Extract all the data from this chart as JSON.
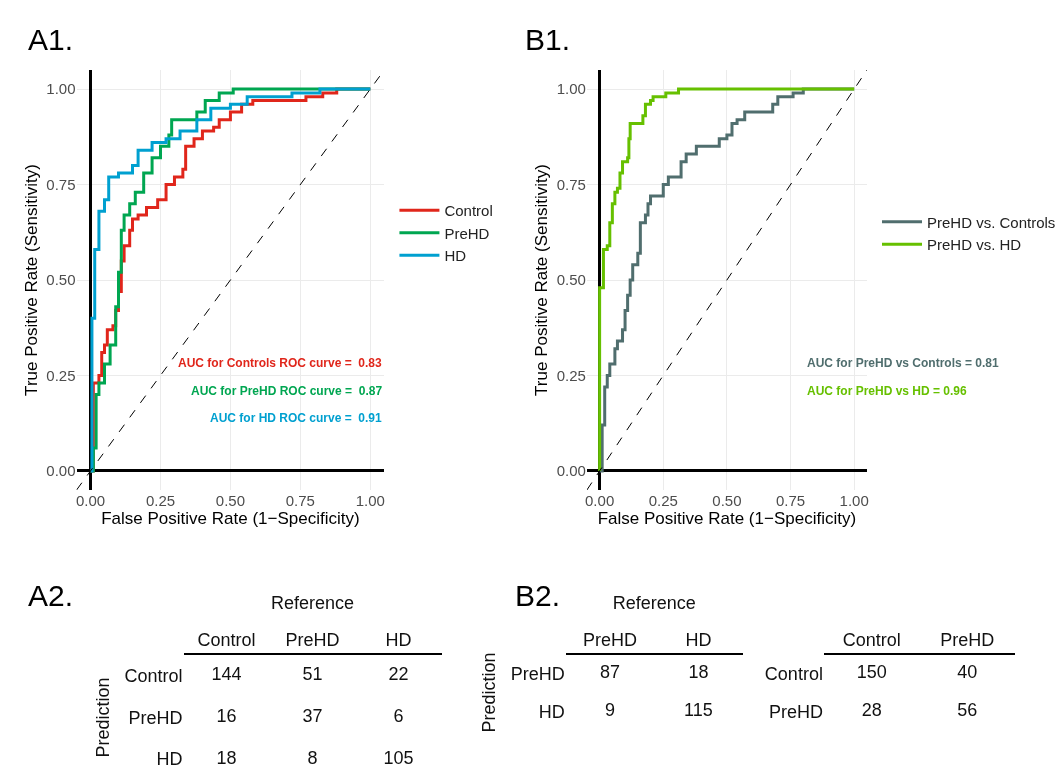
{
  "chart_data": [
    {
      "type": "step",
      "title": "A1.",
      "xlabel": "False Positive Rate (1−Specificity)",
      "ylabel": "True Positive Rate (Sensitivity)",
      "xlim": [
        -0.05,
        1.05
      ],
      "ylim": [
        -0.05,
        1.05
      ],
      "xticks": [
        {
          "value": 0,
          "label": "0.00"
        },
        {
          "value": 0.25,
          "label": "0.25"
        },
        {
          "value": 0.5,
          "label": "0.50"
        },
        {
          "value": 0.75,
          "label": "0.75"
        },
        {
          "value": 1,
          "label": "1.00"
        }
      ],
      "yticks": [
        {
          "value": 0,
          "label": "0.00"
        },
        {
          "value": 0.25,
          "label": "0.25"
        },
        {
          "value": 0.5,
          "label": "0.50"
        },
        {
          "value": 0.75,
          "label": "0.75"
        },
        {
          "value": 1,
          "label": "1.00"
        }
      ],
      "grid": true,
      "legend": "right",
      "marker": "none",
      "series": [
        {
          "name": "Control",
          "color": "#e0261b",
          "x": [
            0,
            0.01,
            0.03,
            0.04,
            0.05,
            0.06,
            0.08,
            0.09,
            0.1,
            0.11,
            0.12,
            0.14,
            0.15,
            0.17,
            0.2,
            0.24,
            0.27,
            0.3,
            0.33,
            0.34,
            0.37,
            0.4,
            0.44,
            0.46,
            0.5,
            0.54,
            0.58,
            0.7,
            0.77,
            0.83,
            0.88,
            1
          ],
          "values": [
            0,
            0.23,
            0.25,
            0.31,
            0.33,
            0.37,
            0.38,
            0.42,
            0.47,
            0.55,
            0.59,
            0.63,
            0.66,
            0.67,
            0.69,
            0.71,
            0.75,
            0.77,
            0.79,
            0.85,
            0.87,
            0.89,
            0.9,
            0.92,
            0.94,
            0.96,
            0.97,
            0.97,
            0.98,
            0.99,
            1,
            1
          ]
        },
        {
          "name": "PreHD",
          "color": "#00a651",
          "x": [
            0,
            0.01,
            0.02,
            0.03,
            0.05,
            0.07,
            0.09,
            0.1,
            0.11,
            0.12,
            0.14,
            0.16,
            0.19,
            0.22,
            0.25,
            0.28,
            0.29,
            0.35,
            0.38,
            0.41,
            0.46,
            0.51,
            1
          ],
          "values": [
            0,
            0.06,
            0.2,
            0.23,
            0.28,
            0.33,
            0.43,
            0.52,
            0.63,
            0.67,
            0.7,
            0.73,
            0.78,
            0.82,
            0.85,
            0.88,
            0.92,
            0.92,
            0.94,
            0.97,
            0.99,
            1,
            1
          ]
        },
        {
          "name": "HD",
          "color": "#00a0d0",
          "x": [
            0,
            0.005,
            0.015,
            0.03,
            0.05,
            0.065,
            0.1,
            0.15,
            0.17,
            0.22,
            0.27,
            0.32,
            0.38,
            0.43,
            0.5,
            0.56,
            0.72,
            0.82,
            1
          ],
          "values": [
            0,
            0.4,
            0.58,
            0.68,
            0.71,
            0.77,
            0.78,
            0.8,
            0.84,
            0.86,
            0.87,
            0.89,
            0.92,
            0.95,
            0.96,
            0.98,
            0.99,
            1,
            1
          ]
        },
        {
          "type": "line",
          "line_style": "dashed",
          "color": "#000000",
          "x": [
            -0.05,
            1.05
          ],
          "values": [
            -0.05,
            1.05
          ]
        }
      ],
      "annotations": [
        "AUC for Controls ROC curve =  0.83",
        "AUC for PreHD ROC curve =  0.87",
        "AUC for HD ROC curve =  0.91"
      ]
    },
    {
      "type": "step",
      "title": "B1.",
      "xlabel": "False Positive Rate (1−Specificity)",
      "ylabel": "True Positive Rate (Sensitivity)",
      "xlim": [
        -0.05,
        1.05
      ],
      "ylim": [
        -0.05,
        1.05
      ],
      "xticks": [
        {
          "value": 0,
          "label": "0.00"
        },
        {
          "value": 0.25,
          "label": "0.25"
        },
        {
          "value": 0.5,
          "label": "0.50"
        },
        {
          "value": 0.75,
          "label": "0.75"
        },
        {
          "value": 1,
          "label": "1.00"
        }
      ],
      "yticks": [
        {
          "value": 0,
          "label": "0.00"
        },
        {
          "value": 0.25,
          "label": "0.25"
        },
        {
          "value": 0.5,
          "label": "0.50"
        },
        {
          "value": 0.75,
          "label": "0.75"
        },
        {
          "value": 1,
          "label": "1.00"
        }
      ],
      "grid": true,
      "legend": "right",
      "marker": "none",
      "series": [
        {
          "name": "PreHD vs. Controls",
          "color": "#506e6e",
          "x": [
            0,
            0.01,
            0.02,
            0.03,
            0.04,
            0.06,
            0.07,
            0.09,
            0.1,
            0.11,
            0.12,
            0.13,
            0.15,
            0.16,
            0.18,
            0.19,
            0.2,
            0.24,
            0.25,
            0.27,
            0.31,
            0.32,
            0.34,
            0.37,
            0.38,
            0.46,
            0.47,
            0.5,
            0.52,
            0.54,
            0.57,
            0.66,
            0.68,
            0.7,
            0.76,
            0.8,
            1
          ],
          "values": [
            0,
            0.12,
            0.22,
            0.25,
            0.28,
            0.32,
            0.34,
            0.37,
            0.42,
            0.46,
            0.5,
            0.54,
            0.57,
            0.65,
            0.67,
            0.7,
            0.72,
            0.72,
            0.75,
            0.77,
            0.77,
            0.81,
            0.83,
            0.83,
            0.85,
            0.85,
            0.87,
            0.88,
            0.91,
            0.92,
            0.94,
            0.94,
            0.96,
            0.98,
            0.99,
            1,
            1
          ]
        },
        {
          "name": "PreHD vs. HD",
          "color": "#66c000",
          "x": [
            0,
            0,
            0.01,
            0.015,
            0.03,
            0.04,
            0.05,
            0.06,
            0.07,
            0.08,
            0.09,
            0.11,
            0.115,
            0.12,
            0.155,
            0.17,
            0.18,
            0.2,
            0.21,
            0.25,
            0.26,
            0.31,
            1
          ],
          "values": [
            0,
            0.48,
            0.48,
            0.58,
            0.59,
            0.65,
            0.7,
            0.73,
            0.74,
            0.78,
            0.81,
            0.82,
            0.87,
            0.91,
            0.91,
            0.93,
            0.96,
            0.97,
            0.98,
            0.98,
            0.99,
            1,
            1
          ]
        },
        {
          "type": "line",
          "line_style": "dashed",
          "color": "#000000",
          "x": [
            -0.05,
            1.05
          ],
          "values": [
            -0.05,
            1.05
          ]
        }
      ],
      "annotations": [
        "AUC for PreHD vs Controls = 0.81",
        "AUC for PreHD vs HD = 0.96"
      ]
    },
    {
      "type": "heatmap",
      "title": "A2.",
      "xlabel": "Reference",
      "ylabel": "Prediction",
      "categories": [
        "Control",
        "PreHD",
        "HD"
      ],
      "y_categories": [
        "Control",
        "PreHD",
        "HD"
      ],
      "cells": [
        [
          144,
          51,
          22
        ],
        [
          16,
          37,
          6
        ],
        [
          18,
          8,
          105
        ]
      ],
      "data_labels": true
    },
    {
      "type": "heatmap",
      "title": "B2.",
      "xlabel": "Reference",
      "ylabel": "Prediction",
      "categories": [
        "PreHD",
        "HD"
      ],
      "y_categories": [
        "PreHD",
        "HD"
      ],
      "cells": [
        [
          87,
          18
        ],
        [
          9,
          115
        ]
      ],
      "data_labels": true
    },
    {
      "type": "heatmap",
      "categories": [
        "Control",
        "PreHD"
      ],
      "y_categories": [
        "Control",
        "PreHD"
      ],
      "cells": [
        [
          150,
          40
        ],
        [
          28,
          56
        ]
      ],
      "data_labels": true
    }
  ]
}
